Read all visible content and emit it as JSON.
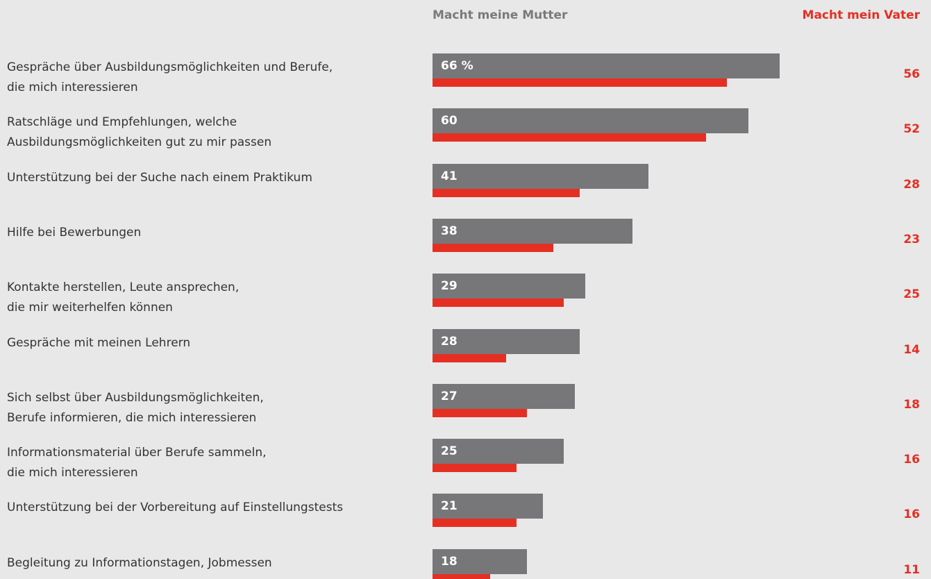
{
  "chart_data": {
    "type": "bar",
    "orientation": "horizontal",
    "categories": [
      "Gespräche über Ausbildungsmöglichkeiten und Berufe,\ndie mich interessieren",
      "Ratschläge und Empfehlungen, welche\nAusbildungsmöglichkeiten gut zu mir passen",
      "Unterstützung bei der Suche nach einem Praktikum",
      "Hilfe bei Bewerbungen",
      "Kontakte herstellen, Leute ansprechen,\ndie mir weiterhelfen können",
      "Gespräche mit meinen Lehrern",
      "Sich selbst über Ausbildungsmöglichkeiten,\nBerufe informieren, die mich interessieren",
      "Informationsmaterial über Berufe sammeln,\ndie mich interessieren",
      "Unterstützung bei der Vorbereitung auf Einstellungstests",
      "Begleitung zu Informationstagen, Jobmessen"
    ],
    "series": [
      {
        "name": "Macht meine Mutter",
        "color": "#77777a",
        "values": [
          66,
          60,
          41,
          38,
          29,
          28,
          27,
          25,
          21,
          18
        ],
        "value_labels": [
          "66 %",
          "60",
          "41",
          "38",
          "29",
          "28",
          "27",
          "25",
          "21",
          "18"
        ]
      },
      {
        "name": "Macht mein Vater",
        "color": "#e52f23",
        "values": [
          56,
          52,
          28,
          23,
          25,
          14,
          18,
          16,
          16,
          11
        ]
      }
    ]
  }
}
